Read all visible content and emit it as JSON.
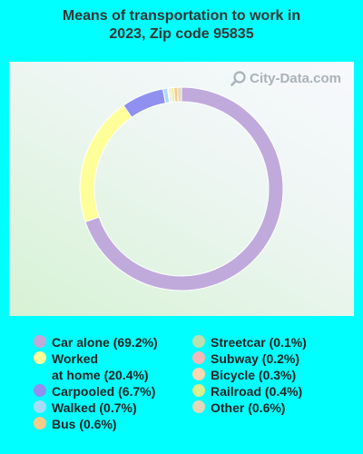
{
  "title_lines": [
    "Means of transportation to work in",
    "2023, Zip code 95835"
  ],
  "watermark": "City-Data.com",
  "chart_data": {
    "type": "pie",
    "donut": true,
    "title": "Means of transportation to work in 2023, Zip code 95835",
    "legend_placement": "bottom",
    "series": [
      {
        "name": "Car alone",
        "value": 69.2,
        "label": "Car alone (69.2%)",
        "color": "#C0AADC"
      },
      {
        "name": "Worked at home",
        "value": 20.4,
        "label": "Worked\nat home (20.4%)",
        "color": "#FFFF99"
      },
      {
        "name": "Carpooled",
        "value": 6.7,
        "label": "Carpooled (6.7%)",
        "color": "#9090F0"
      },
      {
        "name": "Walked",
        "value": 0.7,
        "label": "Walked (0.7%)",
        "color": "#A6DCF8"
      },
      {
        "name": "Bus",
        "value": 0.6,
        "label": "Bus (0.6%)",
        "color": "#F8CC88"
      },
      {
        "name": "Streetcar",
        "value": 0.1,
        "label": "Streetcar (0.1%)",
        "color": "#B8E0B0"
      },
      {
        "name": "Subway",
        "value": 0.2,
        "label": "Subway (0.2%)",
        "color": "#F4B8B8"
      },
      {
        "name": "Bicycle",
        "value": 0.3,
        "label": "Bicycle (0.3%)",
        "color": "#FCD8B0"
      },
      {
        "name": "Railroad",
        "value": 0.4,
        "label": "Railroad (0.4%)",
        "color": "#D8F090"
      },
      {
        "name": "Other",
        "value": 0.6,
        "label": "Other (0.6%)",
        "color": "#E0D8B8"
      }
    ],
    "draw_order": [
      "Car alone",
      "Worked at home",
      "Carpooled",
      "Walked",
      "Streetcar",
      "Subway",
      "Bicycle",
      "Railroad",
      "Bus",
      "Other"
    ]
  },
  "legend": {
    "left": [
      0,
      1,
      2,
      3,
      4
    ],
    "right": [
      5,
      6,
      7,
      8,
      9
    ]
  }
}
